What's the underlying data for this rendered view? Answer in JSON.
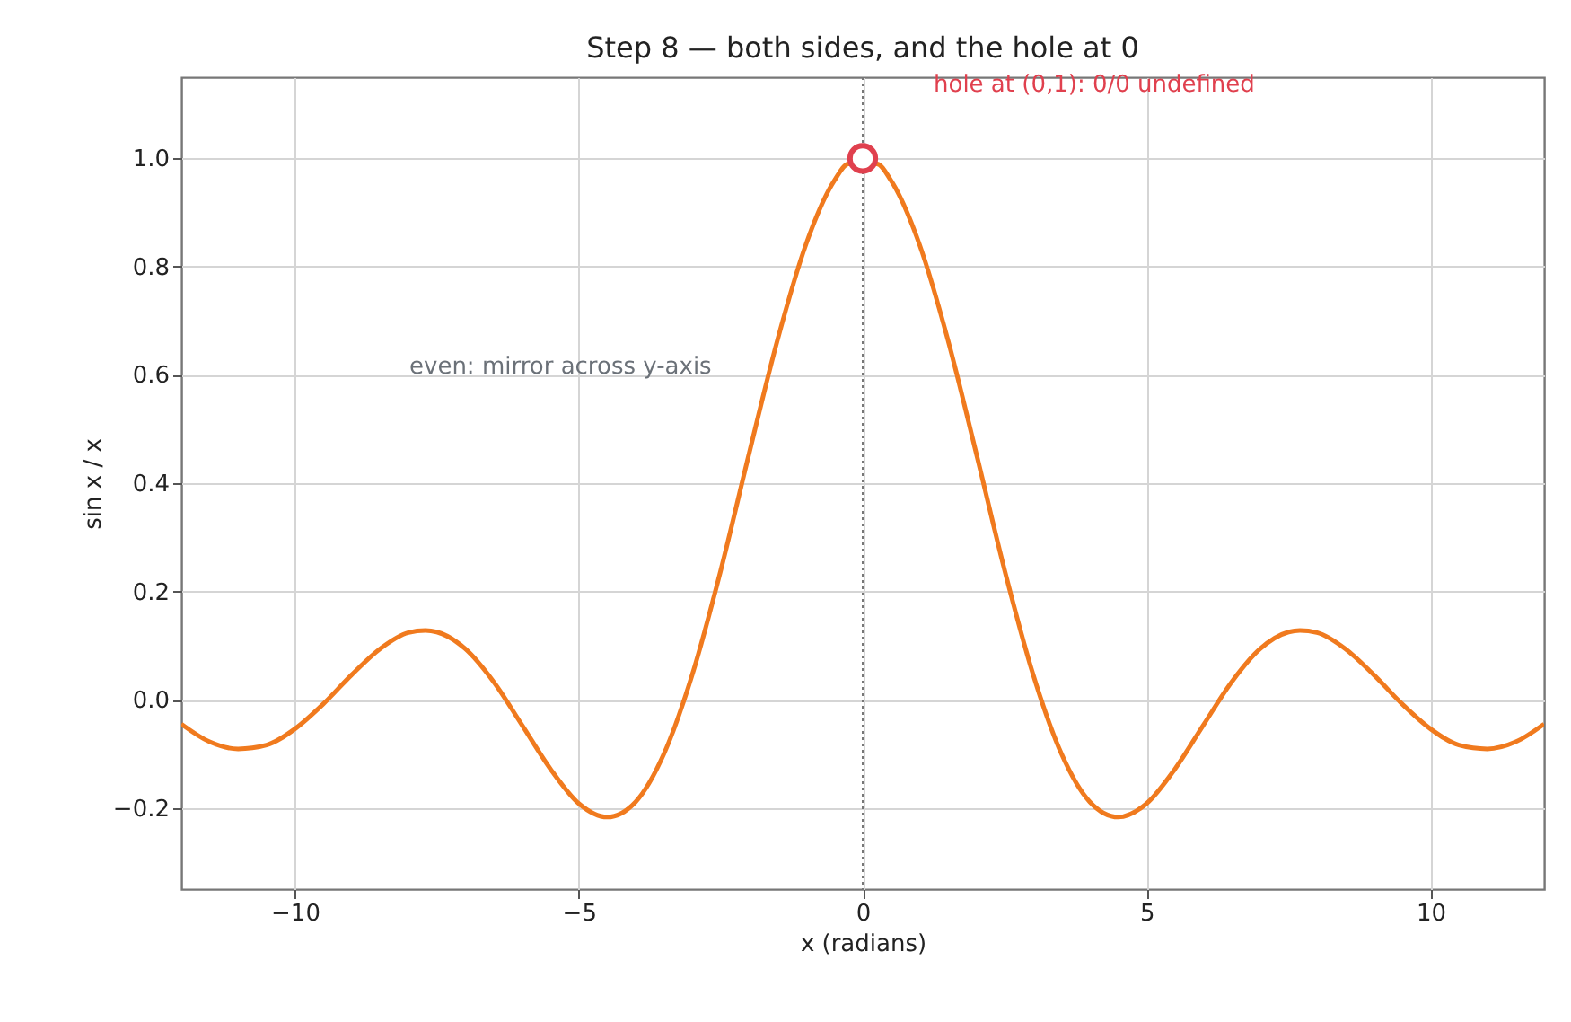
{
  "chart_data": {
    "type": "line",
    "title": "Step 8 — both sides, and the hole at 0",
    "xlabel": "x (radians)",
    "ylabel": "sin x / x",
    "xlim": [
      -12,
      12
    ],
    "xticks": [
      -10,
      -5,
      0,
      5,
      10
    ],
    "ylim": [
      -0.35,
      1.15
    ],
    "yticks": [
      -0.2,
      {
        "value": 0,
        "label": "0.0"
      },
      0.2,
      0.4,
      0.6,
      0.8,
      {
        "value": 1,
        "label": "1.0"
      }
    ],
    "grid": true,
    "series": [
      {
        "color": "#f07a1e",
        "line_style": "solid",
        "marker": "none",
        "x": [
          -12,
          -11.5,
          -11,
          -10.5,
          -10,
          -9.5,
          -9,
          -8.5,
          -8,
          -7.7,
          -7.5,
          -7,
          -6.5,
          -6,
          -5.5,
          -5,
          -4.5,
          -4,
          -3.5,
          -3,
          -2.5,
          -2,
          -1.5,
          -1,
          -0.5,
          -0.25,
          0.25,
          0.5,
          1,
          1.5,
          2,
          2.5,
          3,
          3.5,
          4,
          4.5,
          5,
          5.5,
          6,
          6.5,
          7,
          7.5,
          7.7,
          8,
          8.5,
          9,
          9.5,
          10,
          10.5,
          11,
          11.5,
          12
        ],
        "values": [
          -0.045,
          -0.078,
          -0.091,
          -0.084,
          -0.054,
          -0.008,
          0.046,
          0.094,
          0.124,
          0.128,
          0.125,
          0.094,
          0.033,
          -0.047,
          -0.128,
          -0.192,
          -0.217,
          -0.189,
          -0.1,
          0.047,
          0.239,
          0.455,
          0.665,
          0.841,
          0.959,
          0.99,
          0.99,
          0.959,
          0.841,
          0.665,
          0.455,
          0.239,
          0.047,
          -0.1,
          -0.189,
          -0.217,
          -0.192,
          -0.128,
          -0.047,
          0.033,
          0.094,
          0.125,
          0.128,
          0.124,
          0.094,
          0.046,
          -0.008,
          -0.054,
          -0.084,
          -0.091,
          -0.078,
          -0.045
        ]
      },
      {
        "type": "scatter",
        "color": "#e0404e",
        "marker": "circle",
        "x": [
          0
        ],
        "values": [
          1.0
        ]
      }
    ],
    "ref_lines": [
      {
        "axis": "x",
        "value": 0,
        "color": "#777777",
        "line_style": "dotted"
      }
    ],
    "annotations": [
      "hole at (0,1): 0/0 undefined",
      "even: mirror across y-axis"
    ]
  }
}
